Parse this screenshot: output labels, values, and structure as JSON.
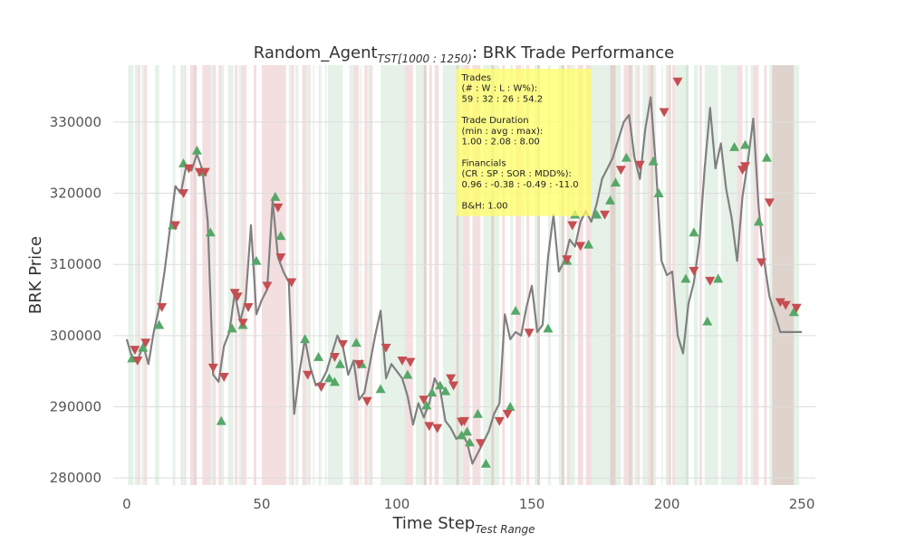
{
  "colors": {
    "price_line": "#808080",
    "buy_marker": "#55a868",
    "sell_marker": "#c44e52",
    "win_band": "#55a868",
    "loss_band": "#c44e52",
    "info_box": "#ffff66",
    "grid": "#dddddd",
    "text": "#333333"
  },
  "chart_data": {
    "type": "line",
    "title": {
      "prefix": "Random_Agent",
      "subscript": "TST[1000 : 1250)",
      "suffix": ": BRK Trade Performance"
    },
    "xlabel": {
      "main": "Time Step",
      "subscript": "Test Range"
    },
    "ylabel": "BRK Price",
    "xlim": [
      -5,
      255
    ],
    "ylim": [
      279000,
      338000
    ],
    "x_ticks": [
      0,
      50,
      100,
      150,
      200,
      250
    ],
    "y_ticks": [
      280000,
      290000,
      300000,
      310000,
      320000,
      330000
    ],
    "x_tick_labels": [
      "0",
      "50",
      "100",
      "150",
      "200",
      "250"
    ],
    "y_tick_labels": [
      "280000",
      "290000",
      "300000",
      "310000",
      "320000",
      "330000"
    ],
    "grid": true,
    "series": [
      {
        "x": [
          0,
          2,
          4,
          6,
          8,
          10,
          12,
          14,
          16,
          18,
          20,
          22,
          24,
          26,
          28,
          30,
          32,
          34,
          36,
          38,
          40,
          42,
          44,
          46,
          48,
          50,
          52,
          54,
          56,
          58,
          60,
          62,
          64,
          66,
          68,
          70,
          72,
          74,
          76,
          78,
          80,
          82,
          84,
          86,
          88,
          90,
          92,
          94,
          96,
          98,
          100,
          102,
          104,
          106,
          108,
          110,
          112,
          114,
          116,
          118,
          120,
          122,
          124,
          126,
          128,
          130,
          132,
          134,
          136,
          138,
          140,
          142,
          144,
          146,
          148,
          150,
          152,
          154,
          156,
          158,
          160,
          162,
          164,
          166,
          168,
          170,
          172,
          174,
          176,
          178,
          180,
          182,
          184,
          186,
          188,
          190,
          192,
          194,
          196,
          198,
          200,
          202,
          204,
          206,
          208,
          210,
          212,
          214,
          216,
          218,
          220,
          222,
          224,
          226,
          228,
          230,
          232,
          234,
          236,
          238,
          240,
          242,
          244,
          246,
          248,
          250
        ],
        "y": [
          299500,
          296800,
          296300,
          298800,
          296000,
          300500,
          304000,
          309000,
          315000,
          321000,
          320000,
          323800,
          323200,
          325500,
          323300,
          316000,
          294500,
          293500,
          298500,
          300500,
          306000,
          302000,
          305000,
          315500,
          303000,
          305000,
          306500,
          319000,
          311000,
          309000,
          307500,
          289000,
          295000,
          299500,
          295500,
          293000,
          293500,
          295000,
          297500,
          300000,
          298500,
          294500,
          296500,
          291000,
          292000,
          296000,
          300000,
          303500,
          294000,
          296000,
          295000,
          294000,
          291500,
          287500,
          290500,
          288500,
          290500,
          294000,
          292500,
          288000,
          287000,
          285500,
          286200,
          285000,
          282000,
          283500,
          285000,
          286500,
          289000,
          290500,
          303000,
          299500,
          300500,
          300000,
          304000,
          307000,
          300500,
          301500,
          311000,
          317000,
          309000,
          310500,
          313500,
          312500,
          316000,
          317500,
          316000,
          318500,
          322000,
          323500,
          325000,
          327500,
          330000,
          331000,
          325000,
          322000,
          329000,
          333500,
          323500,
          310500,
          308500,
          309000,
          300000,
          297500,
          304500,
          307500,
          313000,
          323500,
          332000,
          323500,
          327000,
          320500,
          316500,
          310500,
          319500,
          324500,
          330500,
          318000,
          310500,
          305500,
          303000,
          300500,
          300500,
          300500,
          300500,
          300500
        ]
      }
    ],
    "buy_signals": {
      "x": [
        2,
        6,
        12,
        17,
        21,
        26,
        28,
        31,
        35,
        39,
        43,
        48,
        55,
        57,
        66,
        71,
        75,
        77,
        79,
        85,
        87,
        94,
        104,
        111,
        113,
        116,
        118,
        124,
        126,
        127,
        130,
        133,
        142,
        144,
        156,
        163,
        166,
        171,
        174,
        179,
        181,
        185,
        195,
        197,
        207,
        210,
        215,
        219,
        225,
        229,
        234,
        237,
        247
      ],
      "y": [
        296800,
        298300,
        301500,
        315500,
        324200,
        326000,
        323000,
        314500,
        288000,
        301000,
        301500,
        310500,
        319500,
        314000,
        299500,
        297000,
        294000,
        293500,
        296000,
        299000,
        296000,
        292500,
        294500,
        290200,
        292000,
        293000,
        292200,
        286000,
        286500,
        285000,
        289000,
        282000,
        290000,
        303500,
        301000,
        310500,
        317000,
        312800,
        317000,
        319000,
        321500,
        325000,
        324500,
        320000,
        308000,
        314500,
        302000,
        308000,
        326500,
        326800,
        316000,
        325000,
        303300
      ]
    },
    "sell_signals": {
      "x": [
        3,
        4,
        7,
        13,
        18,
        21,
        23,
        27,
        29,
        32,
        36,
        40,
        41,
        43,
        45,
        52,
        56,
        57,
        61,
        67,
        72,
        77,
        80,
        86,
        89,
        96,
        102,
        105,
        110,
        112,
        115,
        120,
        121,
        124,
        125,
        131,
        138,
        141,
        149,
        163,
        165,
        168,
        177,
        183,
        190,
        199,
        204,
        210,
        216,
        228,
        229,
        235,
        238,
        242,
        244,
        248
      ],
      "y": [
        298000,
        296500,
        299000,
        304000,
        315500,
        320000,
        323500,
        323000,
        323000,
        295500,
        294200,
        306000,
        305500,
        301800,
        304000,
        307000,
        318000,
        311000,
        307500,
        294500,
        292800,
        297000,
        298800,
        296000,
        290800,
        298300,
        296500,
        296300,
        291000,
        287300,
        287000,
        294000,
        293000,
        287900,
        288000,
        284900,
        288000,
        289000,
        300400,
        310700,
        315500,
        312600,
        317000,
        323300,
        324000,
        331400,
        335700,
        309100,
        307700,
        323300,
        323800,
        310300,
        318700,
        304700,
        304300,
        303900
      ]
    },
    "win_bands": [
      [
        0.5,
        2.5
      ],
      [
        3,
        4
      ],
      [
        5.5,
        6.5
      ],
      [
        10.5,
        12
      ],
      [
        17,
        18
      ],
      [
        20.5,
        21.5
      ],
      [
        25,
        25.5
      ],
      [
        31,
        32
      ],
      [
        35,
        36
      ],
      [
        37.5,
        39.5
      ],
      [
        41.5,
        42.5
      ],
      [
        44,
        44.5
      ],
      [
        60,
        61
      ],
      [
        62.5,
        63.5
      ],
      [
        66.5,
        67.5
      ],
      [
        69,
        69.5
      ],
      [
        71,
        72
      ],
      [
        73.5,
        74
      ],
      [
        74.5,
        77
      ],
      [
        77,
        80
      ],
      [
        82.5,
        84
      ],
      [
        86.5,
        87
      ],
      [
        89,
        90
      ],
      [
        94,
        103
      ],
      [
        107,
        111
      ],
      [
        117,
        124.5
      ],
      [
        132,
        138
      ],
      [
        142,
        143
      ],
      [
        146.5,
        147
      ],
      [
        151,
        153
      ],
      [
        156,
        157
      ],
      [
        160,
        162
      ],
      [
        164,
        166
      ],
      [
        172,
        173
      ],
      [
        173,
        183
      ],
      [
        186,
        187
      ],
      [
        188,
        189
      ],
      [
        191,
        193
      ],
      [
        194,
        196
      ],
      [
        198,
        198.5
      ],
      [
        199.5,
        200
      ],
      [
        201,
        201.5
      ],
      [
        203,
        208
      ],
      [
        207,
        208
      ],
      [
        210,
        211.5
      ],
      [
        214,
        219
      ],
      [
        220,
        226
      ],
      [
        229,
        230
      ],
      [
        231,
        232
      ],
      [
        238,
        244
      ],
      [
        244,
        249
      ]
    ],
    "loss_bands": [
      [
        4,
        5
      ],
      [
        6.5,
        7.5
      ],
      [
        20,
        20.5
      ],
      [
        21.5,
        22
      ],
      [
        23.5,
        26
      ],
      [
        28,
        31
      ],
      [
        32,
        33
      ],
      [
        34,
        35
      ],
      [
        40,
        41
      ],
      [
        42.5,
        44
      ],
      [
        47,
        48
      ],
      [
        50,
        58
      ],
      [
        58,
        59
      ],
      [
        61,
        62
      ],
      [
        65,
        66.5
      ],
      [
        67.5,
        68
      ],
      [
        84,
        86
      ],
      [
        88,
        89
      ],
      [
        90,
        91
      ],
      [
        103,
        104.5
      ],
      [
        104.5,
        106
      ],
      [
        110,
        111
      ],
      [
        112,
        113
      ],
      [
        114,
        115.5
      ],
      [
        122,
        123
      ],
      [
        124.5,
        127
      ],
      [
        128,
        131
      ],
      [
        135,
        136
      ],
      [
        139,
        140
      ],
      [
        144,
        146
      ],
      [
        148,
        149
      ],
      [
        152,
        153
      ],
      [
        161,
        162
      ],
      [
        163,
        164
      ],
      [
        167,
        169
      ],
      [
        170,
        172
      ],
      [
        179,
        181
      ],
      [
        184,
        186
      ],
      [
        186,
        187.5
      ],
      [
        189,
        190
      ],
      [
        193,
        195
      ],
      [
        200,
        201.5
      ],
      [
        202,
        203
      ],
      [
        212,
        213
      ],
      [
        226,
        228
      ],
      [
        232,
        234
      ],
      [
        236,
        237
      ],
      [
        239,
        247
      ]
    ],
    "info_box": {
      "lines": [
        "Trades",
        "(# : W : L : W%):",
        "59 : 32 : 26 : 54.2",
        "",
        "Trade Duration",
        "(min : avg : max):",
        "1.00 : 2.08 : 8.00",
        "",
        "Financials",
        "(CR : SP : SOR : MDD%):",
        "0.96 : -0.38 : -0.49 : -11.0",
        "",
        "B&H: 1.00"
      ]
    }
  }
}
